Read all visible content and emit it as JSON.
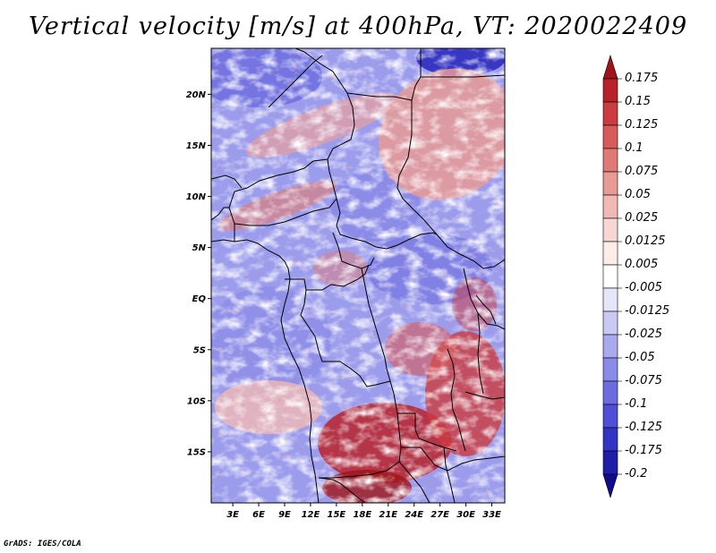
{
  "title": "Vertical velocity [m/s] at 400hPa, VT: 2020022409",
  "credit": "GrADS: IGES/COLA",
  "map": {
    "lat_ticks": [
      "20N",
      "15N",
      "10N",
      "5N",
      "EQ",
      "5S",
      "10S",
      "15S"
    ],
    "lon_ticks": [
      "3E",
      "6E",
      "9E",
      "12E",
      "15E",
      "18E",
      "21E",
      "24E",
      "27E",
      "30E",
      "33E"
    ],
    "lat_range": [
      -20,
      24.5
    ],
    "lon_range": [
      0.5,
      34.5
    ]
  },
  "colorbar": {
    "labels": [
      "0.175",
      "0.15",
      "0.125",
      "0.1",
      "0.075",
      "0.05",
      "0.025",
      "0.0125",
      "0.005",
      "-0.005",
      "-0.0125",
      "-0.025",
      "-0.05",
      "-0.075",
      "-0.1",
      "-0.125",
      "-0.175",
      "-0.2"
    ],
    "colors": [
      "#a01419",
      "#b8232b",
      "#cb3b3f",
      "#d95a5a",
      "#e07a76",
      "#e89a95",
      "#f0b9b4",
      "#f7d6d3",
      "#fcedeb",
      "#ffffff",
      "#e6e6fa",
      "#c9c9f4",
      "#a9a9ee",
      "#8a8ae8",
      "#6c6ce0",
      "#4e4ed6",
      "#3434c4",
      "#1e1eaa",
      "#100c8c"
    ]
  }
}
